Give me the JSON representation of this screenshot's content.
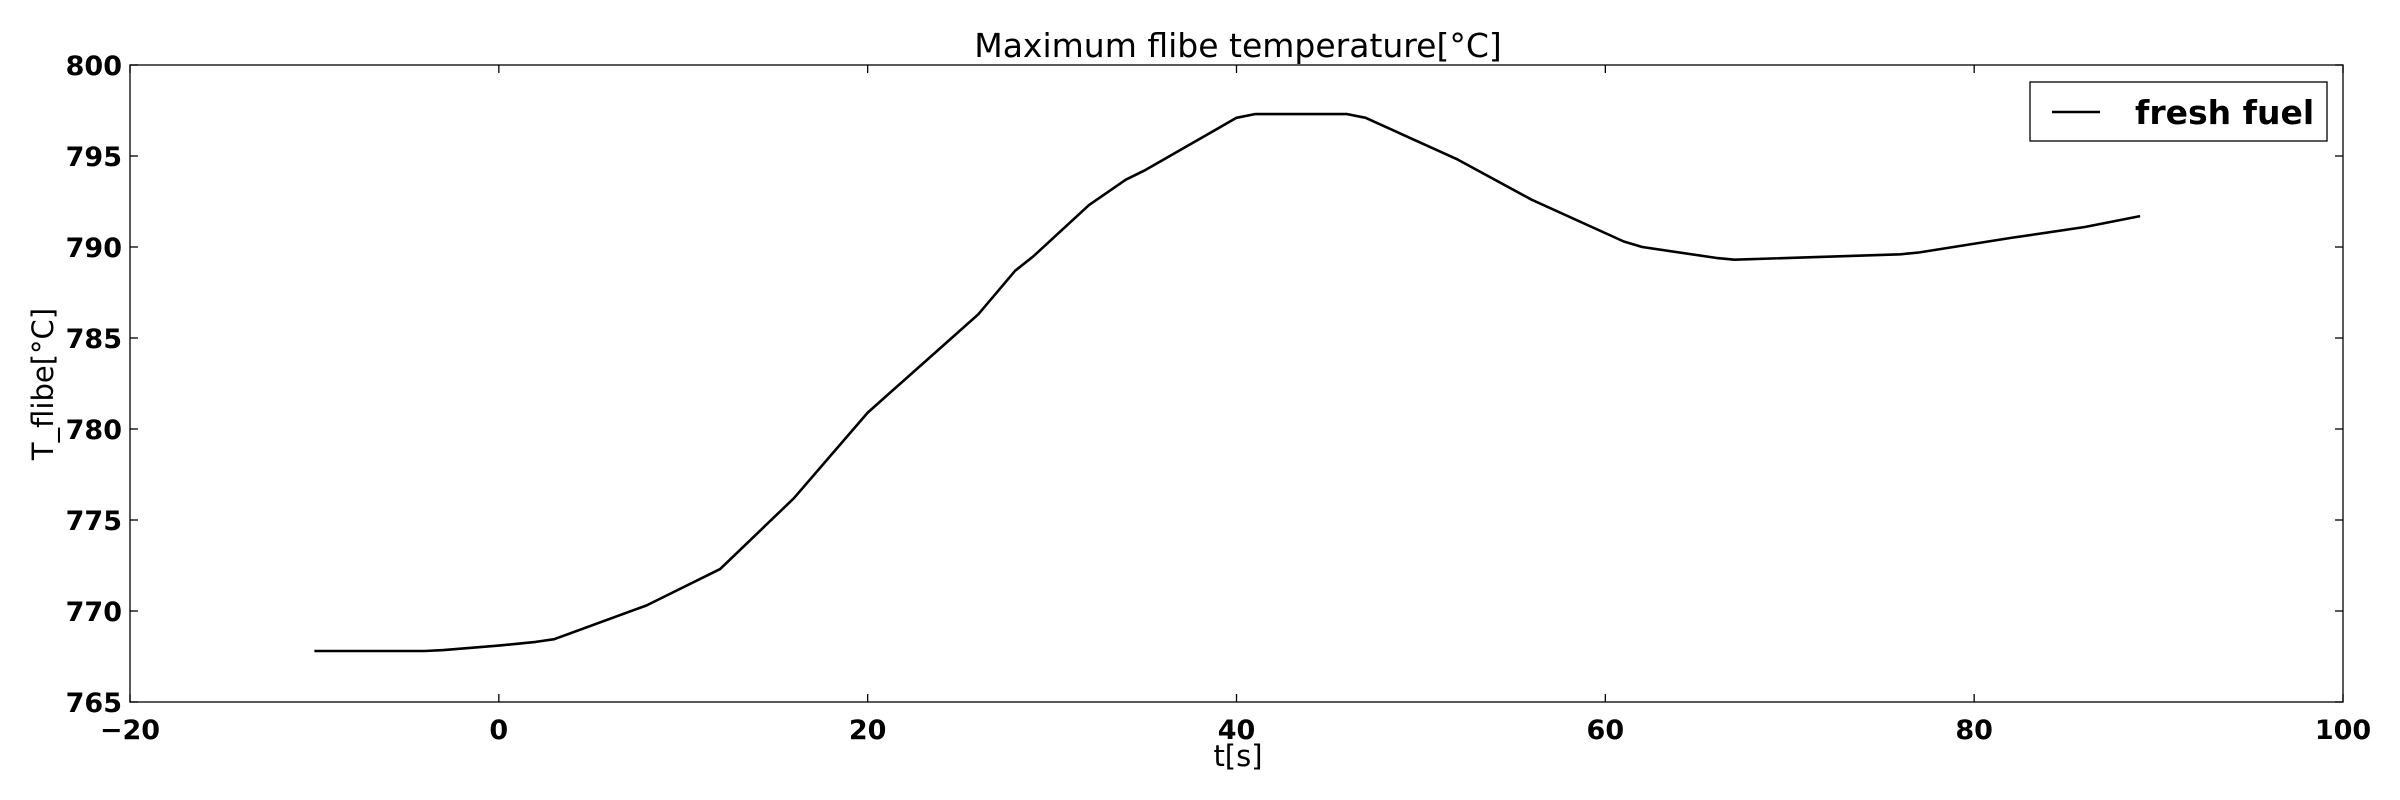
{
  "chart_data": {
    "type": "line",
    "title": "Maximum flibe temperature[°C]",
    "xlabel": "t[s]",
    "ylabel": "T_flibe[°C]",
    "xlim": [
      -20,
      100
    ],
    "ylim": [
      765,
      800
    ],
    "xticks": [
      -20,
      0,
      20,
      40,
      60,
      80,
      100
    ],
    "xtick_labels": [
      "−20",
      "0",
      "20",
      "40",
      "60",
      "80",
      "100"
    ],
    "yticks": [
      765,
      770,
      775,
      780,
      785,
      790,
      795,
      800
    ],
    "ytick_labels": [
      "765",
      "770",
      "775",
      "780",
      "785",
      "790",
      "795",
      "800"
    ],
    "grid": false,
    "legend_position": "top-right",
    "series": [
      {
        "name": "fresh fuel",
        "color": "#000000",
        "x": [
          -10,
          -4,
          -3,
          0,
          2,
          3,
          8,
          12,
          16,
          20,
          24,
          26,
          28,
          29,
          32,
          34,
          35,
          40,
          41,
          46,
          47,
          52,
          56,
          61,
          62,
          66,
          67,
          76,
          77,
          82,
          86,
          89
        ],
        "y": [
          767.8,
          767.8,
          767.85,
          768.1,
          768.3,
          768.45,
          770.3,
          772.3,
          776.2,
          780.9,
          784.5,
          786.3,
          788.7,
          789.5,
          792.3,
          793.7,
          794.2,
          797.1,
          797.3,
          797.3,
          797.1,
          794.8,
          792.6,
          790.3,
          790.0,
          789.4,
          789.3,
          789.6,
          789.7,
          790.5,
          791.1,
          791.7
        ]
      }
    ]
  }
}
